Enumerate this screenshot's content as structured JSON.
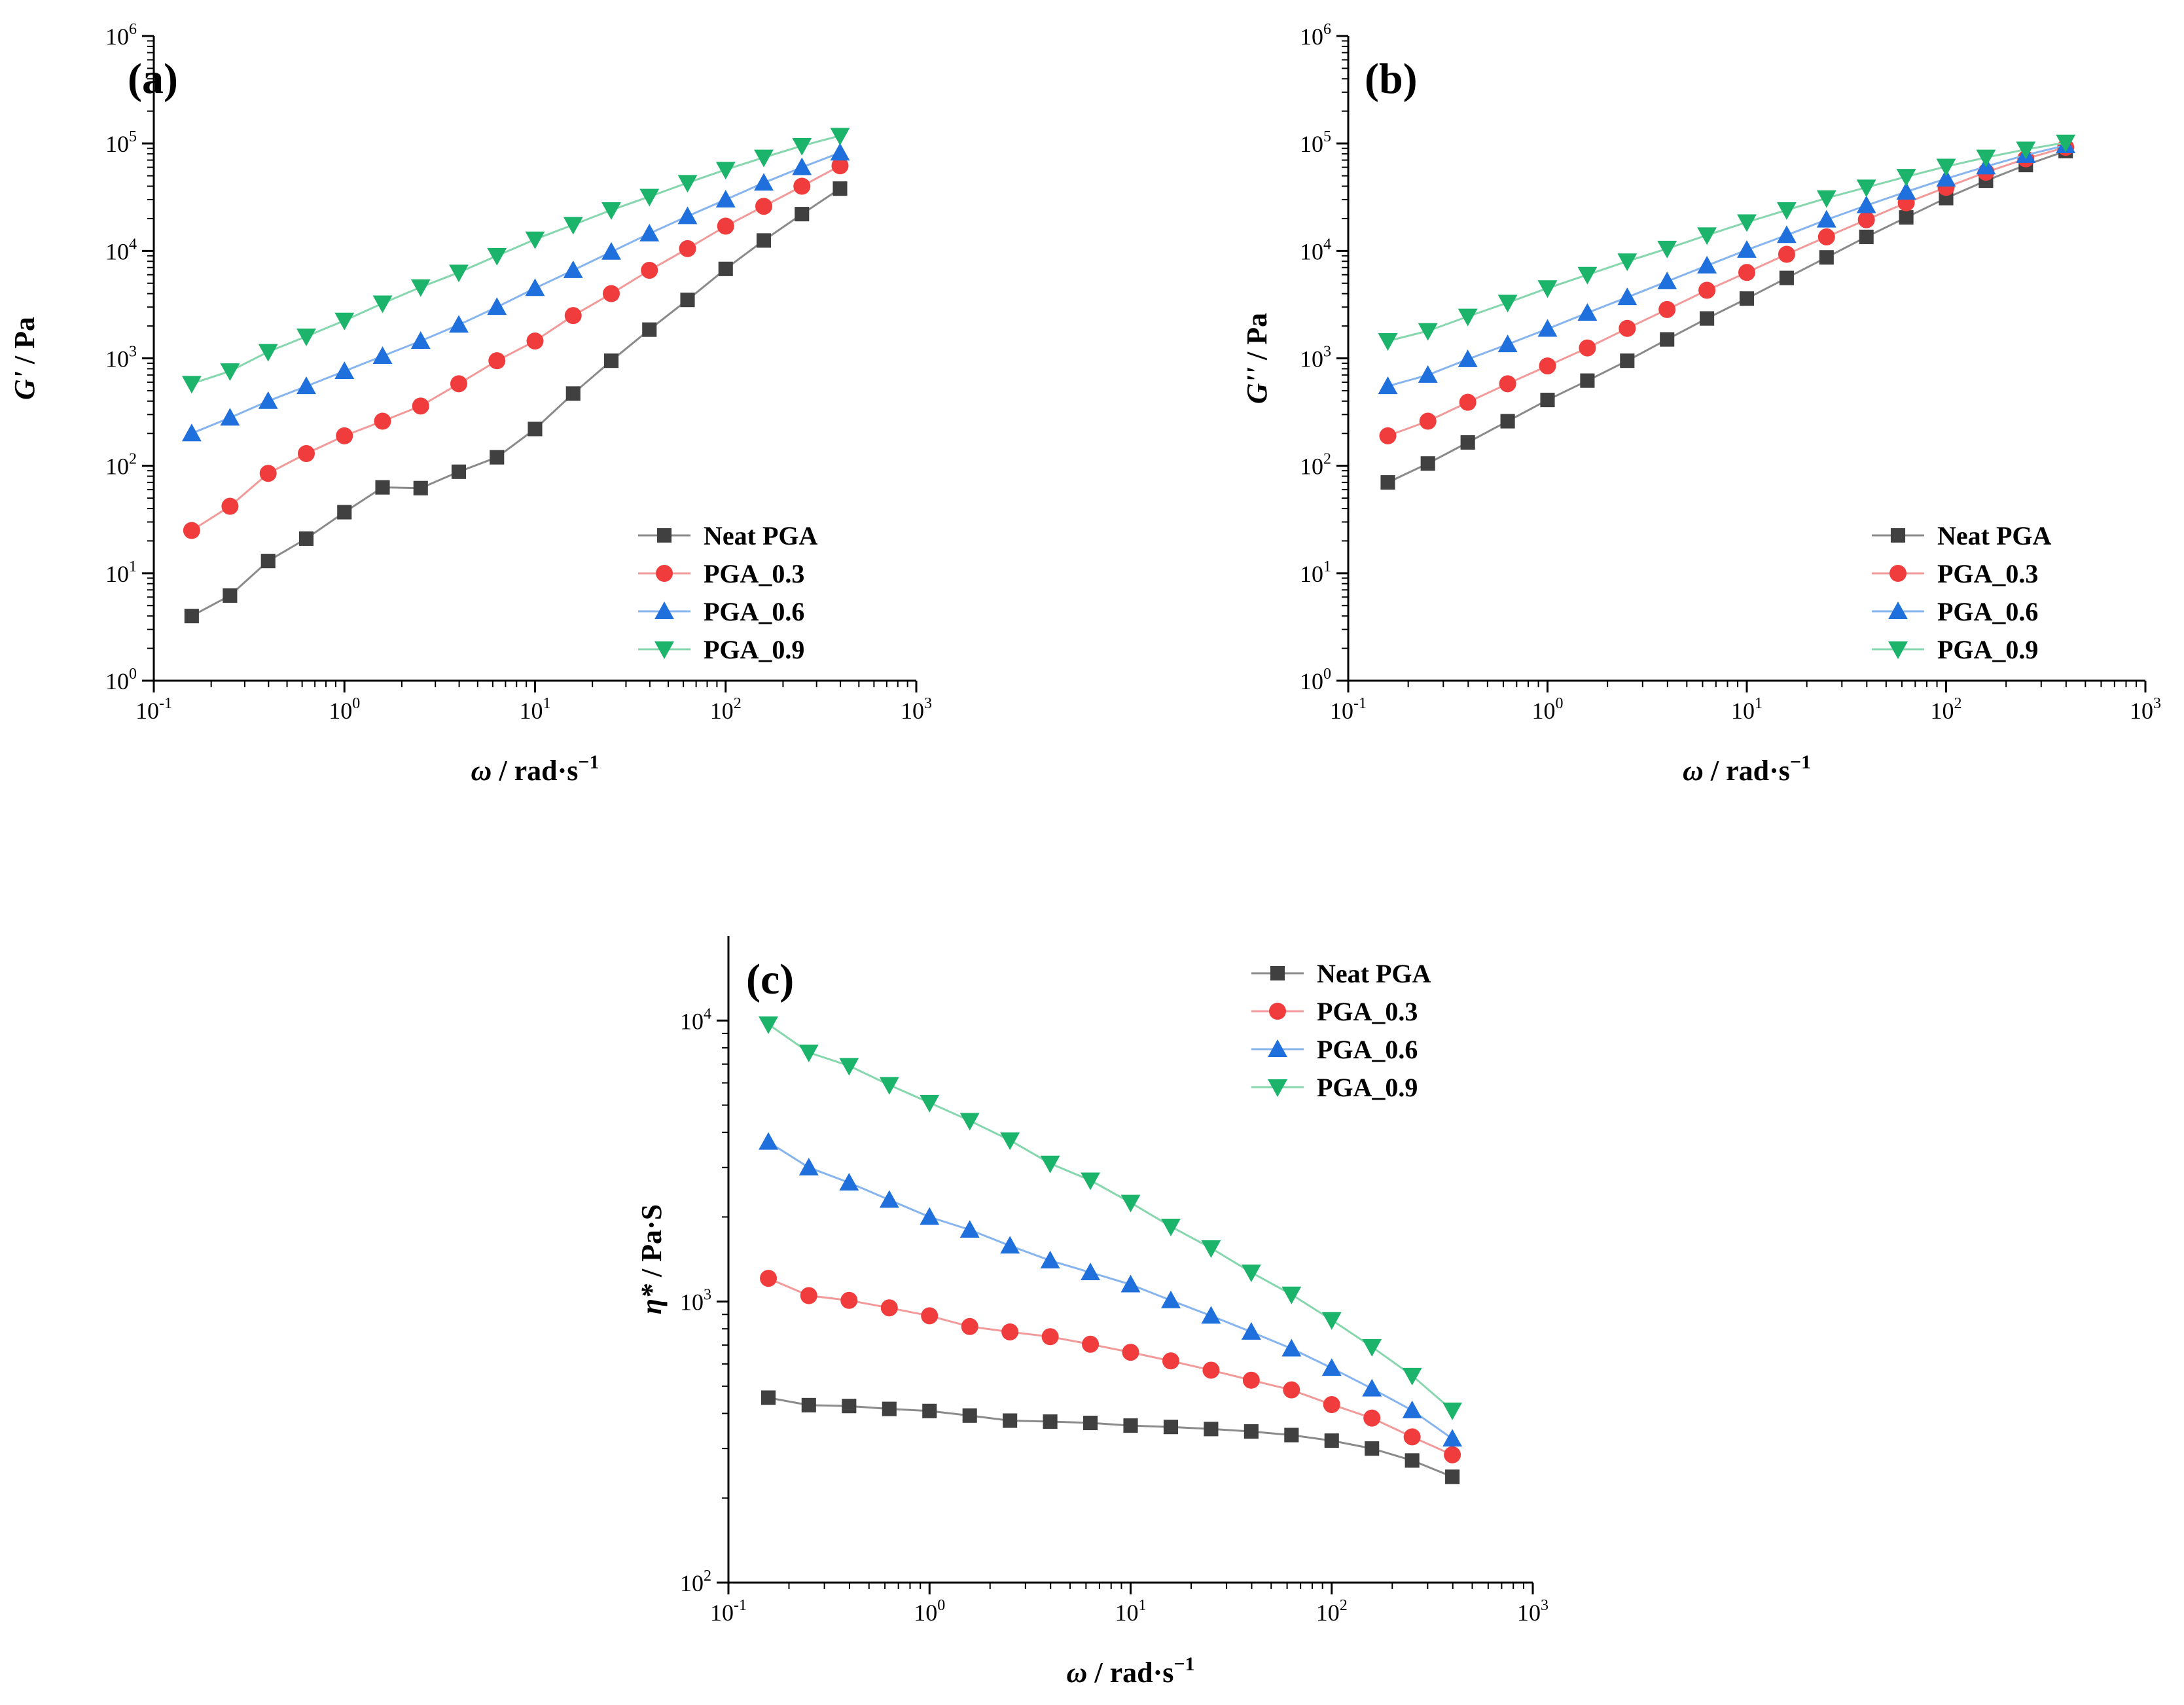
{
  "colors": {
    "Neat PGA": "#404040",
    "PGA_0.3": "#f03c3c",
    "PGA_0.6": "#1f6fdc",
    "PGA_0.9": "#1cb36b"
  },
  "lines": {
    "Neat PGA": "#8a8a8a",
    "PGA_0.3": "#f29a9a",
    "PGA_0.6": "#86b4ee",
    "PGA_0.9": "#86d6ae"
  },
  "markers": {
    "Neat PGA": "square",
    "PGA_0.3": "circle",
    "PGA_0.6": "triangle-up",
    "PGA_0.9": "triangle-down"
  },
  "chart_data": [
    {
      "panel": "(a)",
      "type": "line",
      "xscale": "log",
      "yscale": "log",
      "xlabel_italic": "ω",
      "xlabel_rest": " / rad·s",
      "xlabel_sup": "−1",
      "ylabel_italic": "G'",
      "ylabel_rest": " / Pa",
      "xlim": [
        0.1,
        1000
      ],
      "ylim": [
        1,
        1000000
      ],
      "xticks": [
        0.1,
        1,
        10,
        100,
        1000
      ],
      "xtick_labels": [
        {
          "b": "10",
          "e": "-1"
        },
        {
          "b": "10",
          "e": "0"
        },
        {
          "b": "10",
          "e": "1"
        },
        {
          "b": "10",
          "e": "2"
        },
        {
          "b": "10",
          "e": "3"
        }
      ],
      "yticks": [
        1,
        10,
        100,
        1000,
        10000,
        100000,
        1000000
      ],
      "ytick_labels": [
        {
          "b": "10",
          "e": "0"
        },
        {
          "b": "10",
          "e": "1"
        },
        {
          "b": "10",
          "e": "2"
        },
        {
          "b": "10",
          "e": "3"
        },
        {
          "b": "10",
          "e": "4"
        },
        {
          "b": "10",
          "e": "5"
        },
        {
          "b": "10",
          "e": "6"
        }
      ],
      "legend": [
        "Neat PGA",
        "PGA_0.3",
        "PGA_0.6",
        "PGA_0.9"
      ],
      "legend_position": "bottom-right",
      "x": [
        0.158,
        0.251,
        0.398,
        0.631,
        1,
        1.585,
        2.512,
        3.981,
        6.31,
        10,
        15.85,
        25.12,
        39.81,
        63.1,
        100,
        158.5,
        251.2,
        398.1
      ],
      "series": [
        {
          "name": "Neat PGA",
          "values": [
            4,
            6.2,
            13,
            21,
            37,
            63,
            62,
            88,
            120,
            220,
            470,
            950,
            1850,
            3500,
            6800,
            12500,
            22000,
            38000
          ]
        },
        {
          "name": "PGA_0.3",
          "values": [
            25,
            42,
            85,
            130,
            190,
            260,
            360,
            580,
            950,
            1450,
            2500,
            4000,
            6600,
            10500,
            17000,
            26000,
            40000,
            62000
          ]
        },
        {
          "name": "PGA_0.6",
          "values": [
            200,
            280,
            400,
            550,
            760,
            1050,
            1450,
            2050,
            3000,
            4500,
            6600,
            9800,
            14500,
            21000,
            30000,
            43000,
            60000,
            82000
          ]
        },
        {
          "name": "PGA_0.9",
          "values": [
            580,
            760,
            1150,
            1600,
            2250,
            3250,
            4600,
            6300,
            9000,
            12800,
            17500,
            24000,
            32000,
            43000,
            57000,
            74000,
            95000,
            118000
          ]
        }
      ]
    },
    {
      "panel": "(b)",
      "type": "line",
      "xscale": "log",
      "yscale": "log",
      "xlabel_italic": "ω",
      "xlabel_rest": " / rad·s",
      "xlabel_sup": "−1",
      "ylabel_italic": "G''",
      "ylabel_rest": " / Pa",
      "xlim": [
        0.1,
        1000
      ],
      "ylim": [
        1,
        1000000
      ],
      "xticks": [
        0.1,
        1,
        10,
        100,
        1000
      ],
      "xtick_labels": [
        {
          "b": "10",
          "e": "-1"
        },
        {
          "b": "10",
          "e": "0"
        },
        {
          "b": "10",
          "e": "1"
        },
        {
          "b": "10",
          "e": "2"
        },
        {
          "b": "10",
          "e": "3"
        }
      ],
      "yticks": [
        1,
        10,
        100,
        1000,
        10000,
        100000,
        1000000
      ],
      "ytick_labels": [
        {
          "b": "10",
          "e": "0"
        },
        {
          "b": "10",
          "e": "1"
        },
        {
          "b": "10",
          "e": "2"
        },
        {
          "b": "10",
          "e": "3"
        },
        {
          "b": "10",
          "e": "4"
        },
        {
          "b": "10",
          "e": "5"
        },
        {
          "b": "10",
          "e": "6"
        }
      ],
      "legend": [
        "Neat PGA",
        "PGA_0.3",
        "PGA_0.6",
        "PGA_0.9"
      ],
      "legend_position": "bottom-right",
      "x": [
        0.158,
        0.251,
        0.398,
        0.631,
        1,
        1.585,
        2.512,
        3.981,
        6.31,
        10,
        15.85,
        25.12,
        39.81,
        63.1,
        100,
        158.5,
        251.2,
        398.1
      ],
      "series": [
        {
          "name": "Neat PGA",
          "values": [
            70,
            105,
            165,
            260,
            410,
            620,
            950,
            1500,
            2350,
            3600,
            5600,
            8700,
            13500,
            20500,
            31000,
            45000,
            63000,
            85000
          ]
        },
        {
          "name": "PGA_0.3",
          "values": [
            190,
            260,
            390,
            580,
            850,
            1250,
            1900,
            2850,
            4300,
            6300,
            9300,
            13500,
            19500,
            28000,
            39000,
            54000,
            72000,
            92000
          ]
        },
        {
          "name": "PGA_0.6",
          "values": [
            550,
            700,
            980,
            1350,
            1880,
            2650,
            3700,
            5200,
            7300,
            10200,
            14000,
            19500,
            26500,
            35500,
            47000,
            61000,
            78000,
            96000
          ]
        },
        {
          "name": "PGA_0.9",
          "values": [
            1450,
            1800,
            2450,
            3300,
            4500,
            6000,
            8000,
            10500,
            14000,
            18500,
            24000,
            31000,
            39000,
            49000,
            61000,
            74000,
            88000,
            102000
          ]
        }
      ]
    },
    {
      "panel": "(c)",
      "type": "line",
      "xscale": "log",
      "yscale": "log",
      "xlabel_italic": "ω",
      "xlabel_rest": " / rad·s",
      "xlabel_sup": "−1",
      "ylabel_italic": "η*",
      "ylabel_rest": " / Pa·S",
      "xlim": [
        0.1,
        1000
      ],
      "ylim": [
        100,
        20000
      ],
      "xticks": [
        0.1,
        1,
        10,
        100,
        1000
      ],
      "xtick_labels": [
        {
          "b": "10",
          "e": "-1"
        },
        {
          "b": "10",
          "e": "0"
        },
        {
          "b": "10",
          "e": "1"
        },
        {
          "b": "10",
          "e": "2"
        },
        {
          "b": "10",
          "e": "3"
        }
      ],
      "yticks": [
        100,
        1000,
        10000
      ],
      "ytick_labels": [
        {
          "b": "10",
          "e": "2"
        },
        {
          "b": "10",
          "e": "3"
        },
        {
          "b": "10",
          "e": "4"
        }
      ],
      "legend": [
        "Neat PGA",
        "PGA_0.3",
        "PGA_0.6",
        "PGA_0.9"
      ],
      "legend_position": "top-right",
      "x": [
        0.158,
        0.251,
        0.398,
        0.631,
        1,
        1.585,
        2.512,
        3.981,
        6.31,
        10,
        15.85,
        25.12,
        39.81,
        63.1,
        100,
        158.5,
        251.2,
        398.1
      ],
      "series": [
        {
          "name": "Neat PGA",
          "values": [
            455,
            428,
            425,
            415,
            408,
            393,
            377,
            374,
            370,
            362,
            358,
            352,
            345,
            335,
            320,
            300,
            272,
            238
          ]
        },
        {
          "name": "PGA_0.3",
          "values": [
            1210,
            1050,
            1010,
            950,
            890,
            815,
            780,
            750,
            705,
            660,
            615,
            570,
            525,
            485,
            430,
            385,
            330,
            285
          ]
        },
        {
          "name": "PGA_0.6",
          "values": [
            3700,
            3000,
            2650,
            2300,
            2000,
            1800,
            1580,
            1400,
            1270,
            1150,
            1010,
            890,
            780,
            680,
            580,
            490,
            410,
            325
          ]
        },
        {
          "name": "PGA_0.9",
          "values": [
            9700,
            7700,
            6900,
            5900,
            5100,
            4400,
            3750,
            3100,
            2700,
            2250,
            1850,
            1550,
            1270,
            1060,
            860,
            690,
            545,
            410
          ]
        }
      ]
    }
  ]
}
